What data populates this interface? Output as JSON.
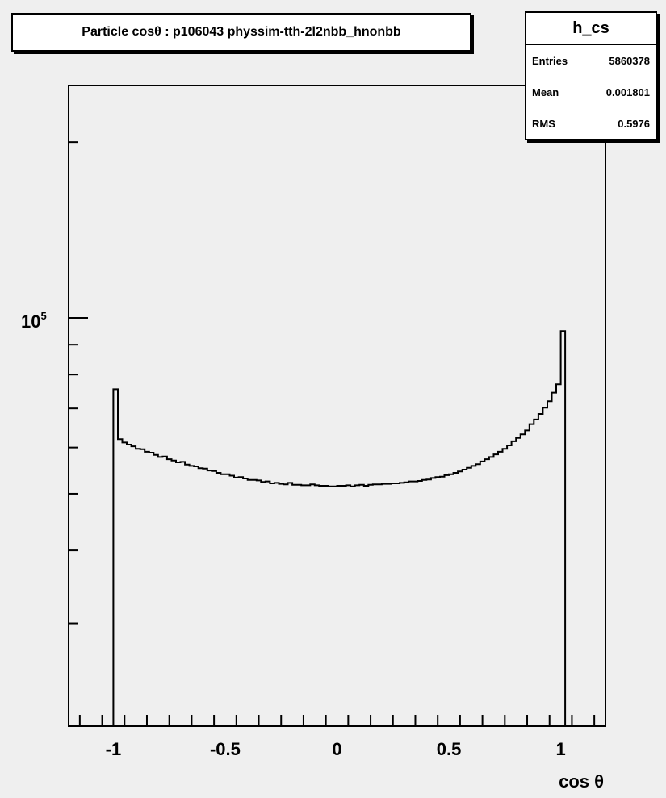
{
  "title": "Particle cosθ : p106043 physsim-tth-2l2nbb_hnonbb",
  "stats": {
    "name": "h_cs",
    "rows": [
      {
        "label": "Entries",
        "value": "5860378"
      },
      {
        "label": "Mean",
        "value": "0.001801"
      },
      {
        "label": "RMS",
        "value": "0.5976"
      }
    ]
  },
  "chart_data": {
    "type": "line",
    "style": "step-histogram",
    "xlabel": "cos θ",
    "ylabel": "",
    "xlim": [
      -1.2,
      1.2
    ],
    "ylim": [
      20000,
      250000
    ],
    "y_scale": "log",
    "x_tick_labels": [
      "-1",
      "-0.5",
      "0",
      "0.5",
      "1"
    ],
    "x_tick_values": [
      -1,
      -0.5,
      0,
      0.5,
      1
    ],
    "y_tick_label_base": "10",
    "y_tick_label_exp": "5",
    "grid": false,
    "bin_edges_start": -1,
    "bin_width": 0.02,
    "values": [
      75500,
      62000,
      61200,
      60700,
      60300,
      59700,
      59600,
      59000,
      58800,
      58300,
      57800,
      57900,
      57300,
      57000,
      56600,
      56700,
      56100,
      55800,
      55700,
      55300,
      55200,
      54800,
      54700,
      54300,
      54000,
      54000,
      53700,
      53300,
      53400,
      53100,
      52800,
      52800,
      52700,
      52400,
      52500,
      52100,
      52200,
      52000,
      51900,
      52200,
      51800,
      51800,
      51700,
      51700,
      51900,
      51700,
      51600,
      51600,
      51500,
      51500,
      51600,
      51600,
      51700,
      51500,
      51700,
      51800,
      51600,
      51800,
      51900,
      51900,
      52000,
      52000,
      52100,
      52100,
      52200,
      52300,
      52500,
      52500,
      52600,
      52800,
      52900,
      53200,
      53400,
      53500,
      53800,
      54000,
      54300,
      54600,
      55000,
      55400,
      55800,
      56200,
      56800,
      57300,
      57800,
      58400,
      59000,
      59700,
      60500,
      61500,
      62300,
      63200,
      64200,
      65800,
      67000,
      68500,
      70200,
      72000,
      74500,
      77000,
      95000
    ],
    "color": "#000000"
  }
}
